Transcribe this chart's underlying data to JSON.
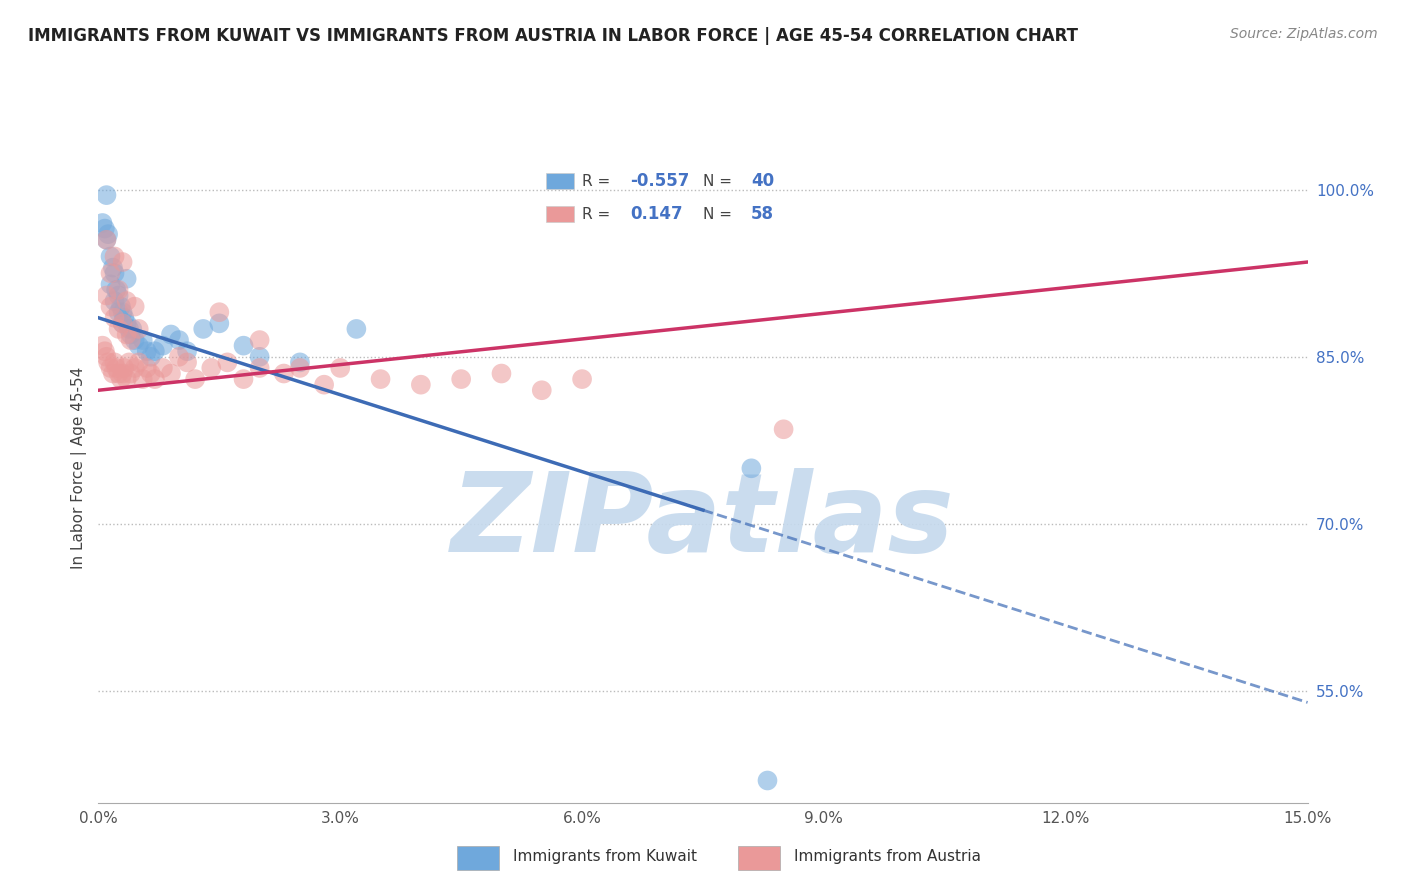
{
  "title": "IMMIGRANTS FROM KUWAIT VS IMMIGRANTS FROM AUSTRIA IN LABOR FORCE | AGE 45-54 CORRELATION CHART",
  "source": "Source: ZipAtlas.com",
  "ylabel": "In Labor Force | Age 45-54",
  "xlim": [
    0.0,
    15.0
  ],
  "ylim": [
    45.0,
    105.0
  ],
  "xticks": [
    0.0,
    3.0,
    6.0,
    9.0,
    12.0,
    15.0
  ],
  "xtick_labels": [
    "0.0%",
    "3.0%",
    "6.0%",
    "9.0%",
    "12.0%",
    "15.0%"
  ],
  "yticks": [
    55.0,
    70.0,
    85.0,
    100.0
  ],
  "ytick_labels": [
    "55.0%",
    "70.0%",
    "85.0%",
    "100.0%"
  ],
  "kuwait_R": -0.557,
  "kuwait_N": 40,
  "austria_R": 0.147,
  "austria_N": 58,
  "kuwait_color": "#6fa8dc",
  "austria_color": "#ea9999",
  "kuwait_line_color": "#3d6bb5",
  "austria_line_color": "#cc3366",
  "watermark": "ZIPatlas",
  "watermark_color": "#c5d9ed",
  "legend_labels": [
    "Immigrants from Kuwait",
    "Immigrants from Austria"
  ],
  "kuwait_line_x0": 0.0,
  "kuwait_line_y0": 88.5,
  "kuwait_line_x1": 15.0,
  "kuwait_line_y1": 54.0,
  "kuwait_solid_end_x": 7.5,
  "austria_line_x0": 0.0,
  "austria_line_y0": 82.0,
  "austria_line_x1": 15.0,
  "austria_line_y1": 93.5,
  "kuwait_x": [
    0.05,
    0.08,
    0.1,
    0.12,
    0.15,
    0.18,
    0.2,
    0.22,
    0.25,
    0.28,
    0.3,
    0.32,
    0.35,
    0.38,
    0.4,
    0.42,
    0.45,
    0.5,
    0.55,
    0.6,
    0.65,
    0.7,
    0.8,
    0.9,
    1.0,
    1.1,
    1.3,
    1.5,
    1.8,
    2.0,
    2.5,
    0.15,
    0.2,
    0.25,
    0.3,
    3.2,
    8.1,
    8.3,
    0.1,
    0.35
  ],
  "kuwait_y": [
    97.0,
    96.5,
    95.5,
    96.0,
    94.0,
    93.0,
    92.5,
    91.0,
    90.5,
    89.5,
    89.0,
    88.5,
    88.0,
    87.5,
    87.0,
    87.5,
    86.5,
    86.0,
    86.5,
    85.5,
    85.0,
    85.5,
    86.0,
    87.0,
    86.5,
    85.5,
    87.5,
    88.0,
    86.0,
    85.0,
    84.5,
    91.5,
    90.0,
    89.0,
    88.0,
    87.5,
    75.0,
    47.0,
    99.5,
    92.0
  ],
  "austria_x": [
    0.05,
    0.08,
    0.1,
    0.12,
    0.15,
    0.18,
    0.2,
    0.22,
    0.25,
    0.28,
    0.3,
    0.32,
    0.35,
    0.38,
    0.4,
    0.45,
    0.5,
    0.55,
    0.6,
    0.65,
    0.7,
    0.8,
    0.9,
    1.0,
    1.1,
    1.2,
    1.4,
    1.6,
    1.8,
    2.0,
    2.3,
    2.5,
    2.8,
    3.0,
    3.5,
    4.0,
    4.5,
    5.0,
    5.5,
    6.0,
    0.1,
    0.15,
    0.2,
    0.25,
    0.3,
    0.35,
    0.4,
    0.5,
    1.5,
    2.0,
    8.5,
    0.1,
    0.2,
    0.3,
    0.15,
    0.25,
    0.35,
    0.45
  ],
  "austria_y": [
    86.0,
    85.5,
    85.0,
    84.5,
    84.0,
    83.5,
    84.5,
    84.0,
    83.5,
    83.0,
    83.5,
    84.0,
    83.0,
    84.5,
    83.5,
    84.0,
    84.5,
    83.0,
    84.0,
    83.5,
    83.0,
    84.0,
    83.5,
    85.0,
    84.5,
    83.0,
    84.0,
    84.5,
    83.0,
    84.0,
    83.5,
    84.0,
    82.5,
    84.0,
    83.0,
    82.5,
    83.0,
    83.5,
    82.0,
    83.0,
    90.5,
    89.5,
    88.5,
    87.5,
    88.0,
    87.0,
    86.5,
    87.5,
    89.0,
    86.5,
    78.5,
    95.5,
    94.0,
    93.5,
    92.5,
    91.0,
    90.0,
    89.5
  ]
}
